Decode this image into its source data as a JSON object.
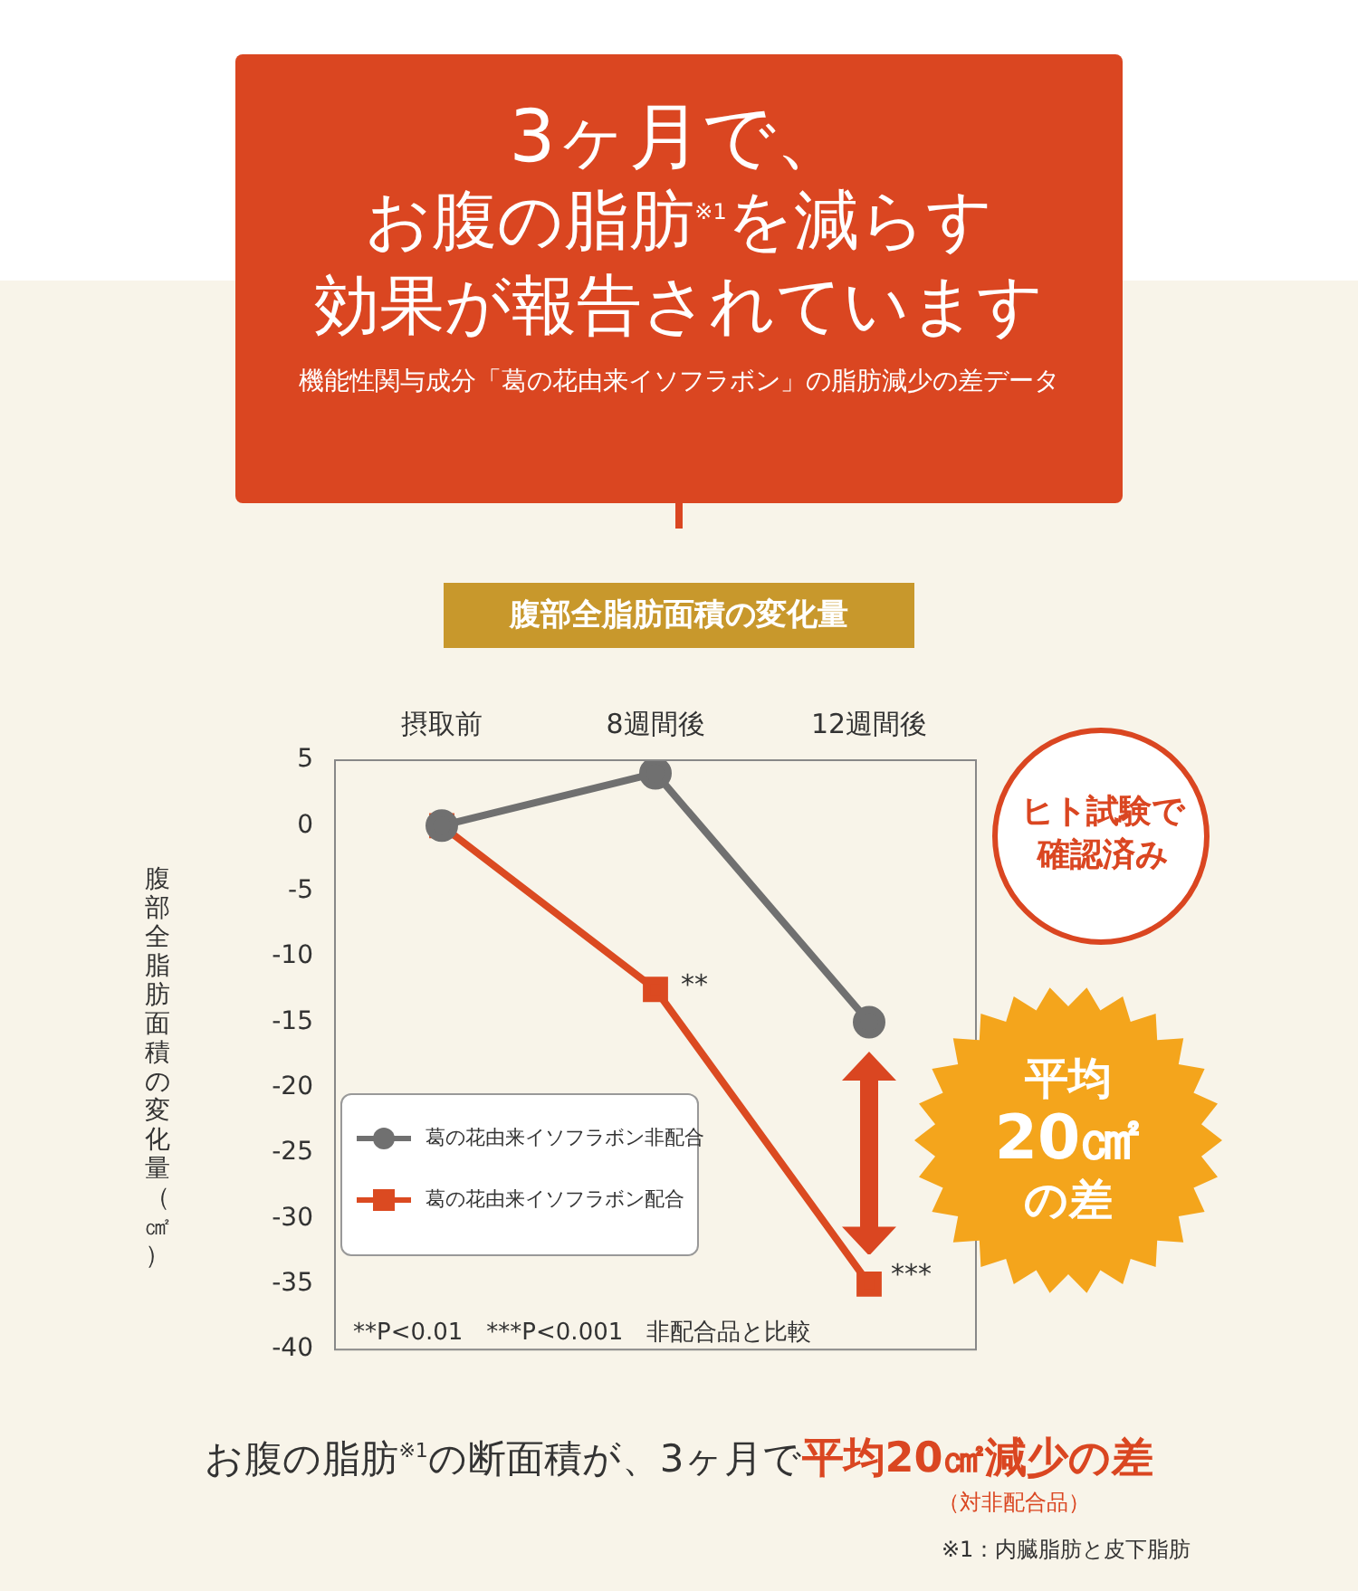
{
  "chart_data": {
    "type": "line",
    "title": "3ヶ月で、",
    "subtitle": "機能性関与成分「葛の花由来イソフラボン」の脂肪減少の差データ",
    "ylabel": "腹部全脂肪面積の変化量（㎠）",
    "categories": [
      "摂取前",
      "8週間後",
      "12週間後"
    ],
    "series": [
      {
        "name": "葛の花由来イソフラボン非配合",
        "color": "#707070",
        "marker": "circle",
        "values": [
          0,
          4,
          -15
        ]
      },
      {
        "name": "葛の花由来イソフラボン配合",
        "color": "#db4a21",
        "marker": "square",
        "values": [
          0,
          -12.5,
          -35
        ]
      }
    ],
    "ylim": [
      -40,
      5
    ],
    "yticks": [
      5,
      0,
      -5,
      -10,
      -15,
      -20,
      -25,
      -30,
      -35,
      -40
    ],
    "legend": "left",
    "annotations": [
      "腹部全脂肪面積の変化量",
      {
        "text": "**",
        "x": "8週間後",
        "y": -12.5
      },
      {
        "text": "***",
        "x": "12週間後",
        "y": -35
      },
      "**P<0.01　***P<0.001　非配合品と比較",
      "ヒト試験で確認済み",
      "平均",
      "20㎠",
      "の差",
      "お腹の脂肪$^{※1}$の断面積が、3ヶ月で",
      "平均20㎠減少の差",
      "（対非配合品）",
      "※1：内臓脂肪と皮下脂肪",
      "お腹の脂肪$^{※1}$を減らす",
      "効果が報告されています"
    ]
  }
}
